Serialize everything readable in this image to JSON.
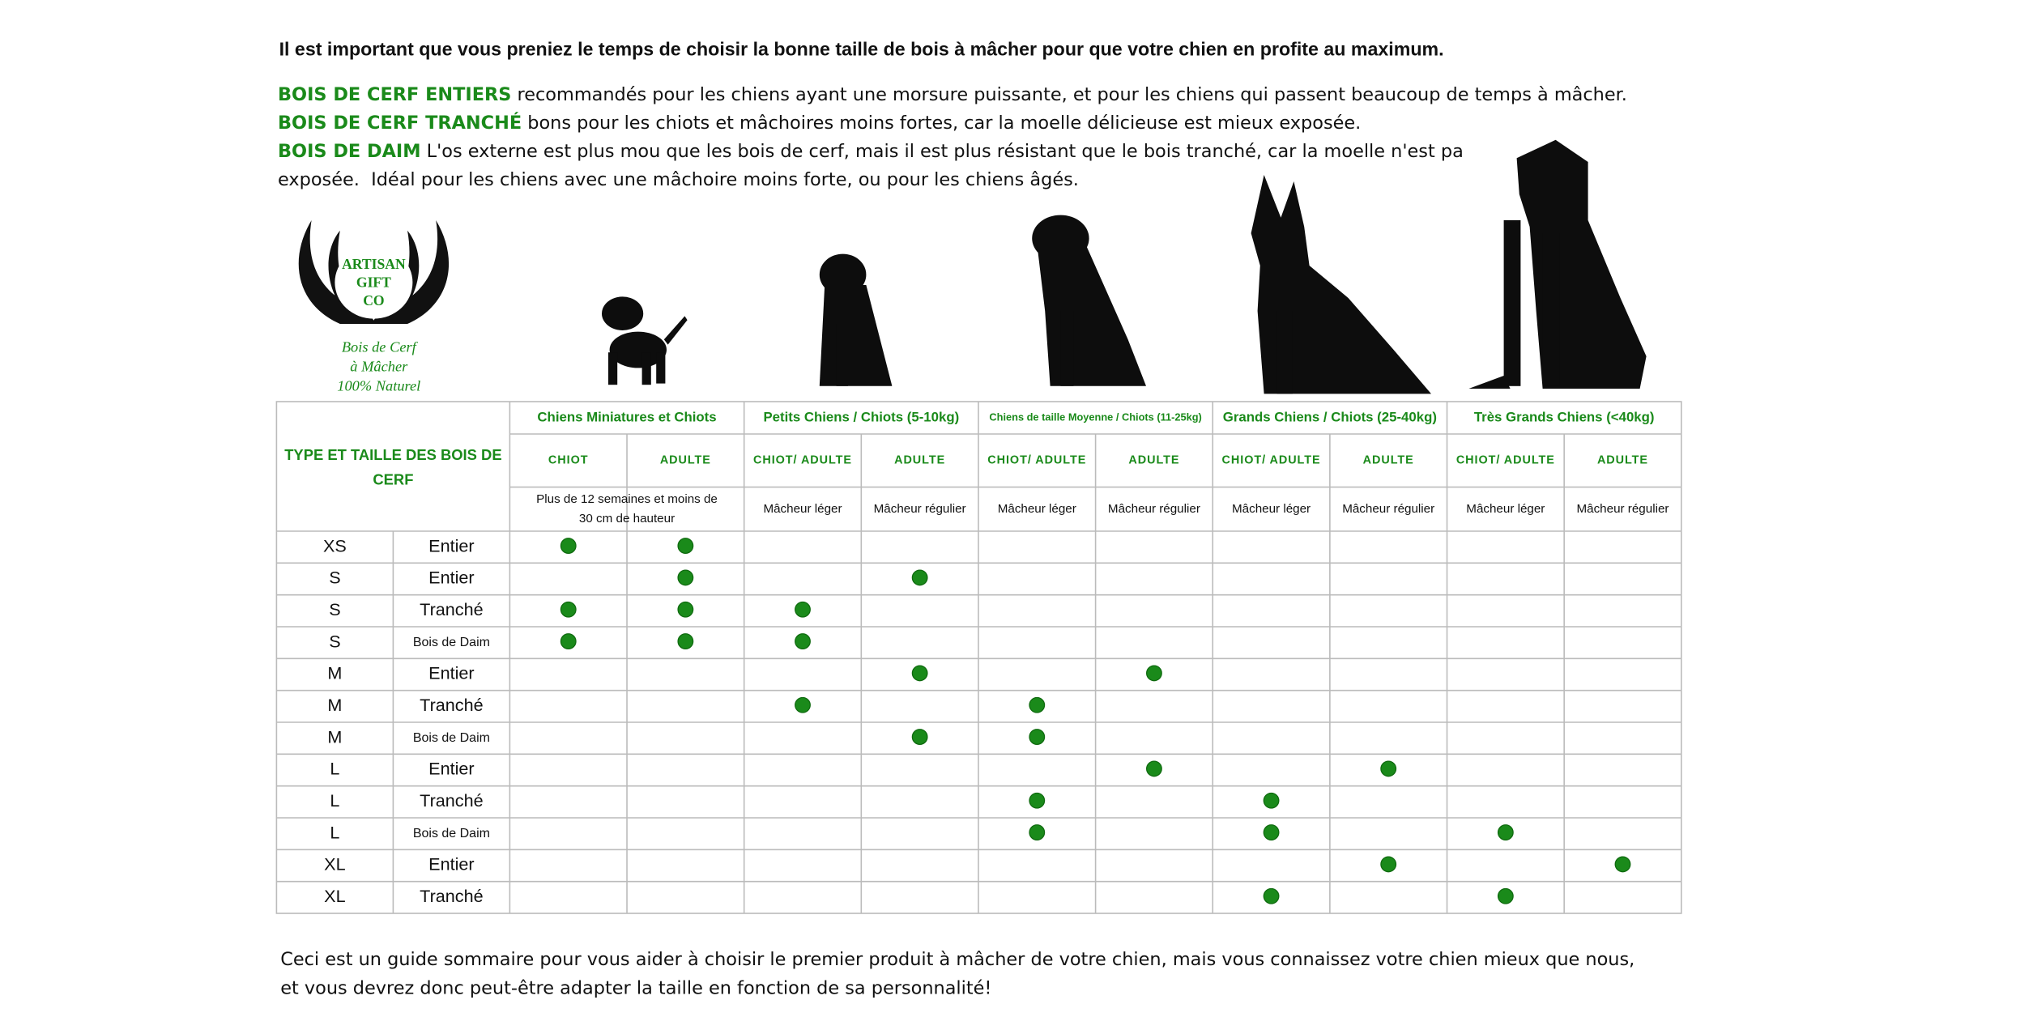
{
  "intro": "Il est important que vous preniez le temps de choisir la bonne taille de bois à mâcher pour que votre chien en profite au maximum.",
  "descriptions": [
    {
      "lead": "BOIS DE CERF ENTIERS",
      "text": "recommandés pour les chiens ayant une morsure puissante, et pour les chiens qui passent beaucoup de temps à mâcher."
    },
    {
      "lead": "BOIS DE CERF TRANCHÉ",
      "text": "bons pour les chiots et mâchoires moins fortes, car la moelle délicieuse est mieux exposée."
    },
    {
      "lead": "BOIS DE DAIM",
      "text": "L'os externe est plus mou que les bois de cerf, mais il est plus résistant que le bois tranché, car la moelle n'est pa",
      "text2": "exposée.  Idéal pour les chiens avec une mâchoire moins forte, ou pour les chiens âgés."
    }
  ],
  "logo": {
    "brand": [
      "ARTISAN",
      "GIFT",
      "CO"
    ],
    "tagline": [
      "Bois de Cerf",
      "à Mâcher",
      "100% Naturel"
    ]
  },
  "table": {
    "corner": [
      "TYPE ET TAILLE DES BOIS DE",
      "CERF"
    ],
    "groups": [
      "Chiens Miniatures et Chiots",
      "Petits Chiens / Chiots (5-10kg)",
      "Chiens de taille Moyenne / Chiots (11-25kg)",
      "Grands Chiens / Chiots (25-40kg)",
      "Très Grands Chiens (<40kg)"
    ],
    "subheaders": [
      "CHIOT",
      "ADULTE",
      "CHIOT/ ADULTE",
      "ADULTE",
      "CHIOT/ ADULTE",
      "ADULTE",
      "CHIOT/ ADULTE",
      "ADULTE",
      "CHIOT/ ADULTE",
      "ADULTE"
    ],
    "notes": [
      [
        "Plus de 12 semaines et moins de",
        "30 cm de hauteur"
      ],
      null,
      [
        "Mâcheur léger"
      ],
      [
        "Mâcheur régulier"
      ],
      [
        "Mâcheur léger"
      ],
      [
        "Mâcheur régulier"
      ],
      [
        "Mâcheur léger"
      ],
      [
        "Mâcheur régulier"
      ],
      [
        "Mâcheur léger"
      ],
      [
        "Mâcheur régulier"
      ]
    ],
    "rows": [
      {
        "size": "XS",
        "type": "Entier",
        "checks": [
          true,
          true,
          false,
          false,
          false,
          false,
          false,
          false,
          false,
          false
        ]
      },
      {
        "size": "S",
        "type": "Entier",
        "checks": [
          false,
          true,
          false,
          true,
          false,
          false,
          false,
          false,
          false,
          false
        ]
      },
      {
        "size": "S",
        "type": "Tranché",
        "checks": [
          true,
          true,
          true,
          false,
          false,
          false,
          false,
          false,
          false,
          false
        ]
      },
      {
        "size": "S",
        "type": "Bois de Daim",
        "checks": [
          true,
          true,
          true,
          false,
          false,
          false,
          false,
          false,
          false,
          false
        ]
      },
      {
        "size": "M",
        "type": "Entier",
        "checks": [
          false,
          false,
          false,
          true,
          false,
          true,
          false,
          false,
          false,
          false
        ]
      },
      {
        "size": "M",
        "type": "Tranché",
        "checks": [
          false,
          false,
          true,
          false,
          true,
          false,
          false,
          false,
          false,
          false
        ]
      },
      {
        "size": "M",
        "type": "Bois de Daim",
        "checks": [
          false,
          false,
          false,
          true,
          true,
          false,
          false,
          false,
          false,
          false
        ]
      },
      {
        "size": "L",
        "type": "Entier",
        "checks": [
          false,
          false,
          false,
          false,
          false,
          true,
          false,
          true,
          false,
          false
        ]
      },
      {
        "size": "L",
        "type": "Tranché",
        "checks": [
          false,
          false,
          false,
          false,
          true,
          false,
          true,
          false,
          false,
          false
        ]
      },
      {
        "size": "L",
        "type": "Bois de Daim",
        "checks": [
          false,
          false,
          false,
          false,
          true,
          false,
          true,
          false,
          true,
          false
        ]
      },
      {
        "size": "XL",
        "type": "Entier",
        "checks": [
          false,
          false,
          false,
          false,
          false,
          false,
          false,
          true,
          false,
          true
        ]
      },
      {
        "size": "XL",
        "type": "Tranché",
        "checks": [
          false,
          false,
          false,
          false,
          false,
          false,
          true,
          false,
          true,
          false
        ]
      }
    ]
  },
  "footer": [
    "Ceci est un guide sommaire pour vous aider à choisir le premier produit à mâcher de votre chien, mais vous connaissez votre chien mieux que nous,",
    "et vous devrez donc peut-être adapter la taille en fonction de sa personnalité!"
  ]
}
